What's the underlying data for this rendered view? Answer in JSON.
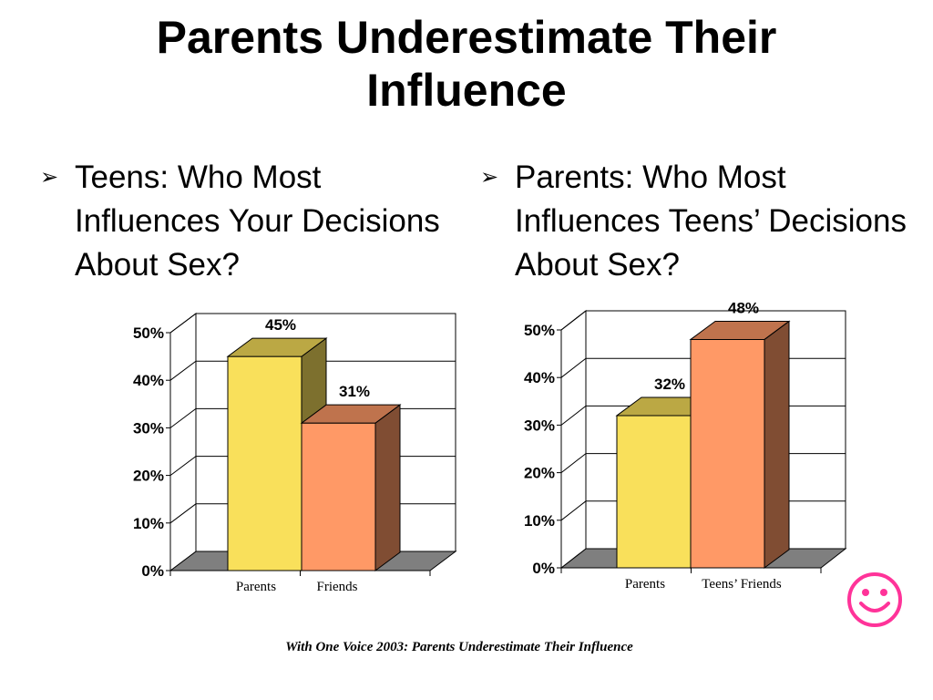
{
  "slide": {
    "title": "Parents Underestimate Their Influence",
    "footnote": "With One Voice 2003:  Parents Underestimate Their Influence",
    "decoration_icon": "smiley-face-icon",
    "bullet_icon": "arrow-bullet-icon"
  },
  "left": {
    "bullet": "Teens: Who Most Influences Your Decisions About Sex?"
  },
  "right": {
    "bullet": "Parents: Who Most Influences Teens’ Decisions About Sex?"
  },
  "colors": {
    "yellow_bar": "#f9e05b",
    "orange_bar": "#ff9966",
    "floor": "#7f7f7f",
    "smiley": "#ff3399"
  },
  "chart_data": [
    {
      "type": "bar",
      "categories": [
        "Parents",
        "Friends"
      ],
      "values": [
        45,
        31
      ],
      "data_labels": [
        "45%",
        "31%"
      ],
      "y_ticks": [
        "0%",
        "10%",
        "20%",
        "30%",
        "40%",
        "50%"
      ],
      "ylim": [
        0,
        50
      ],
      "grid": true,
      "style": "3d"
    },
    {
      "type": "bar",
      "categories": [
        "Parents",
        "Teens’ Friends"
      ],
      "values": [
        32,
        48
      ],
      "data_labels": [
        "32%",
        "48%"
      ],
      "y_ticks": [
        "0%",
        "10%",
        "20%",
        "30%",
        "40%",
        "50%"
      ],
      "ylim": [
        0,
        50
      ],
      "grid": true,
      "style": "3d"
    }
  ]
}
